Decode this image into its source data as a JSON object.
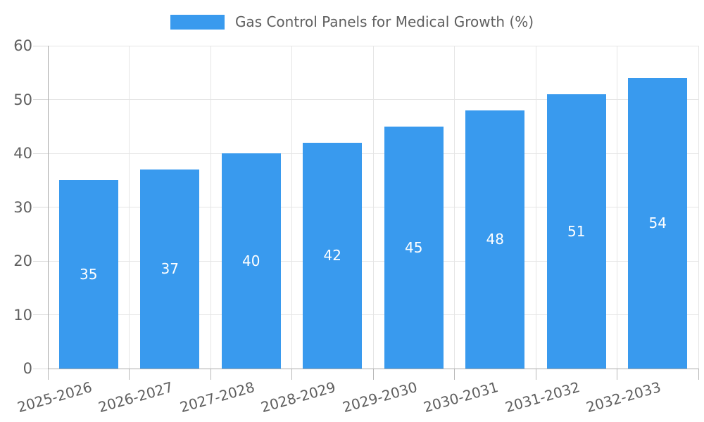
{
  "chart_data": {
    "type": "bar",
    "title": "Gas Control Panels for Medical Growth (%)",
    "categories": [
      "2025-2026",
      "2026-2027",
      "2027-2028",
      "2028-2029",
      "2029-2030",
      "2030-2031",
      "2031-2032",
      "2032-2033"
    ],
    "values": [
      35,
      37,
      40,
      42,
      45,
      48,
      51,
      54
    ],
    "xlabel": "",
    "ylabel": "",
    "ylim": [
      0,
      60
    ],
    "yticks": [
      0,
      10,
      20,
      30,
      40,
      50,
      60
    ],
    "grid": true,
    "legend_position": "top-center",
    "value_label_position": "inside-center",
    "colors": {
      "bar": "#399aee",
      "value_label": "#ffffff",
      "axis_text": "#5f5f5f",
      "gridline": "#e5e5e5",
      "axis_line": "#a9a9a9",
      "tick_y": "#d9d9d9",
      "tick_x": "#b8b8b8",
      "background": "#ffffff"
    }
  }
}
